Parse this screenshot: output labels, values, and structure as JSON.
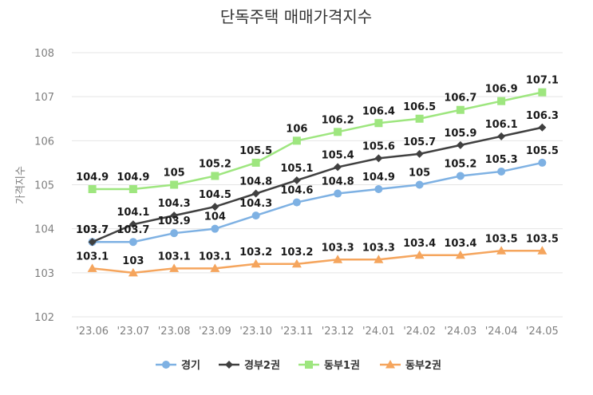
{
  "chart_data": {
    "type": "line",
    "title": "단독주택 매매가격지수",
    "xlabel": "",
    "ylabel": "가격지수",
    "ylim": [
      102,
      108
    ],
    "yticks": [
      "102",
      "103",
      "104",
      "105",
      "106",
      "107",
      "108"
    ],
    "categories": [
      "'23.06",
      "'23.07",
      "'23.08",
      "'23.09",
      "'23.10",
      "'23.11",
      "'23.12",
      "'24.01",
      "'24.02",
      "'24.03",
      "'24.04",
      "'24.05"
    ],
    "grid": true,
    "legend_position": "bottom",
    "series": [
      {
        "name": "경기",
        "color": "#7EB1E3",
        "marker": "circle",
        "values": [
          103.7,
          103.7,
          103.9,
          104,
          104.3,
          104.6,
          104.8,
          104.9,
          105,
          105.2,
          105.3,
          105.5
        ],
        "labels": [
          "103.7",
          "103.7",
          "103.9",
          "104",
          "104.3",
          "104.6",
          "104.8",
          "104.9",
          "105",
          "105.2",
          "105.3",
          "105.5"
        ]
      },
      {
        "name": "경부2권",
        "color": "#404040",
        "marker": "diamond",
        "values": [
          103.7,
          104.1,
          104.3,
          104.5,
          104.8,
          105.1,
          105.4,
          105.6,
          105.7,
          105.9,
          106.1,
          106.3
        ],
        "labels": [
          "103.7",
          "104.1",
          "104.3",
          "104.5",
          "104.8",
          "105.1",
          "105.4",
          "105.6",
          "105.7",
          "105.9",
          "106.1",
          "106.3"
        ]
      },
      {
        "name": "동부1권",
        "color": "#9EE67F",
        "marker": "square",
        "values": [
          104.9,
          104.9,
          105,
          105.2,
          105.5,
          106,
          106.2,
          106.4,
          106.5,
          106.7,
          106.9,
          107.1
        ],
        "labels": [
          "104.9",
          "104.9",
          "105",
          "105.2",
          "105.5",
          "106",
          "106.2",
          "106.4",
          "106.5",
          "106.7",
          "106.9",
          "107.1"
        ]
      },
      {
        "name": "동부2권",
        "color": "#F5A55D",
        "marker": "triangle",
        "values": [
          103.1,
          103,
          103.1,
          103.1,
          103.2,
          103.2,
          103.3,
          103.3,
          103.4,
          103.4,
          103.5,
          103.5
        ],
        "labels": [
          "103.1",
          "103",
          "103.1",
          "103.1",
          "103.2",
          "103.2",
          "103.3",
          "103.3",
          "103.4",
          "103.4",
          "103.5",
          "103.5"
        ]
      }
    ]
  }
}
